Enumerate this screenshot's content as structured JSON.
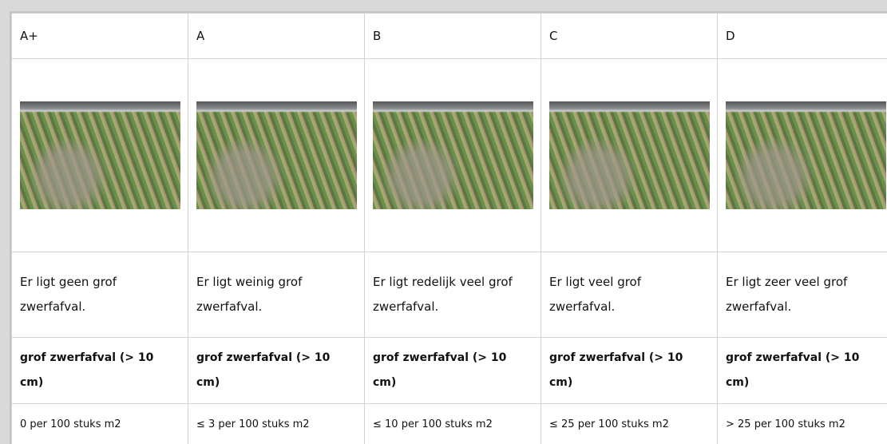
{
  "table": {
    "headers": [
      "A+",
      "A",
      "B",
      "C",
      "D"
    ],
    "rows": [
      [
        "Er ligt geen grof zwerfafval.",
        "Er ligt weinig grof zwerfafval.",
        "Er ligt redelijk veel grof zwerfafval.",
        "Er ligt veel grof zwerfafval.",
        "Er ligt zeer veel grof zwerfafval."
      ],
      [
        "grof zwerfafval (> 10 cm)",
        "grof zwerfafval (> 10 cm)",
        "grof zwerfafval (> 10 cm)",
        "grof zwerfafval (> 10 cm)",
        "grof zwerfafval (> 10 cm)"
      ],
      [
        "0 per 100 stuks m2",
        "≤ 3 per 100 stuks m2",
        "≤ 10 per 100 stuks m2",
        "≤ 25 per 100 stuks m2",
        "> 25 per 100 stuks m2"
      ]
    ]
  }
}
